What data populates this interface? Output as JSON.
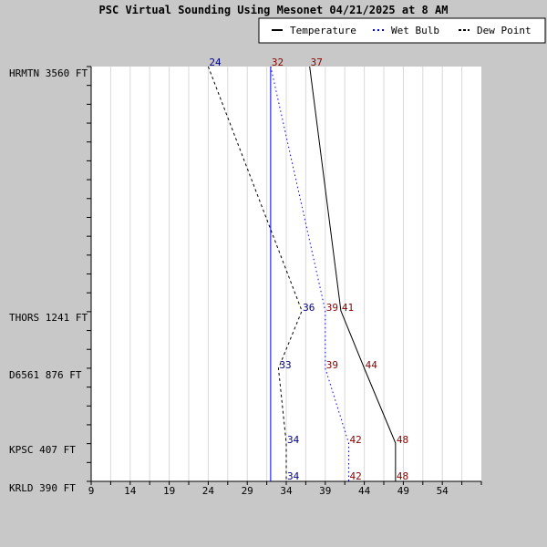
{
  "chart_data": {
    "type": "line",
    "title": "PSC Virtual Sounding Using Mesonet 04/21/2025 at 8 AM",
    "xlabel": "",
    "ylabel": "",
    "x_ticks": [
      9,
      14,
      19,
      24,
      29,
      34,
      39,
      44,
      49,
      54
    ],
    "xlim": [
      9,
      59
    ],
    "ylim": [
      390,
      3560
    ],
    "grid": true,
    "legend_position": "top-right",
    "stations": [
      {
        "label": "HRMTN 3560 FT",
        "elevation": 3560
      },
      {
        "label": "THORS 1241 FT",
        "elevation": 1241
      },
      {
        "label": "D6561 876 FT",
        "elevation": 876
      },
      {
        "label": "KPSC 407 FT",
        "elevation": 407
      },
      {
        "label": "KRLD 390 FT",
        "elevation": 390
      }
    ],
    "freezing_line": 32,
    "series": [
      {
        "name": "Temperature",
        "color": "#000000",
        "style": "solid",
        "label_color": "#8b0000",
        "values": [
          37,
          41,
          44,
          48,
          48
        ]
      },
      {
        "name": "Wet Bulb",
        "color": "#0000ff",
        "style": "dotted",
        "label_color": "#8b0000",
        "values": [
          32,
          39,
          39,
          42,
          42
        ]
      },
      {
        "name": "Dew Point",
        "color": "#000000",
        "style": "dashed",
        "label_color": "#00008b",
        "values": [
          24,
          36,
          33,
          34,
          34
        ]
      }
    ]
  }
}
